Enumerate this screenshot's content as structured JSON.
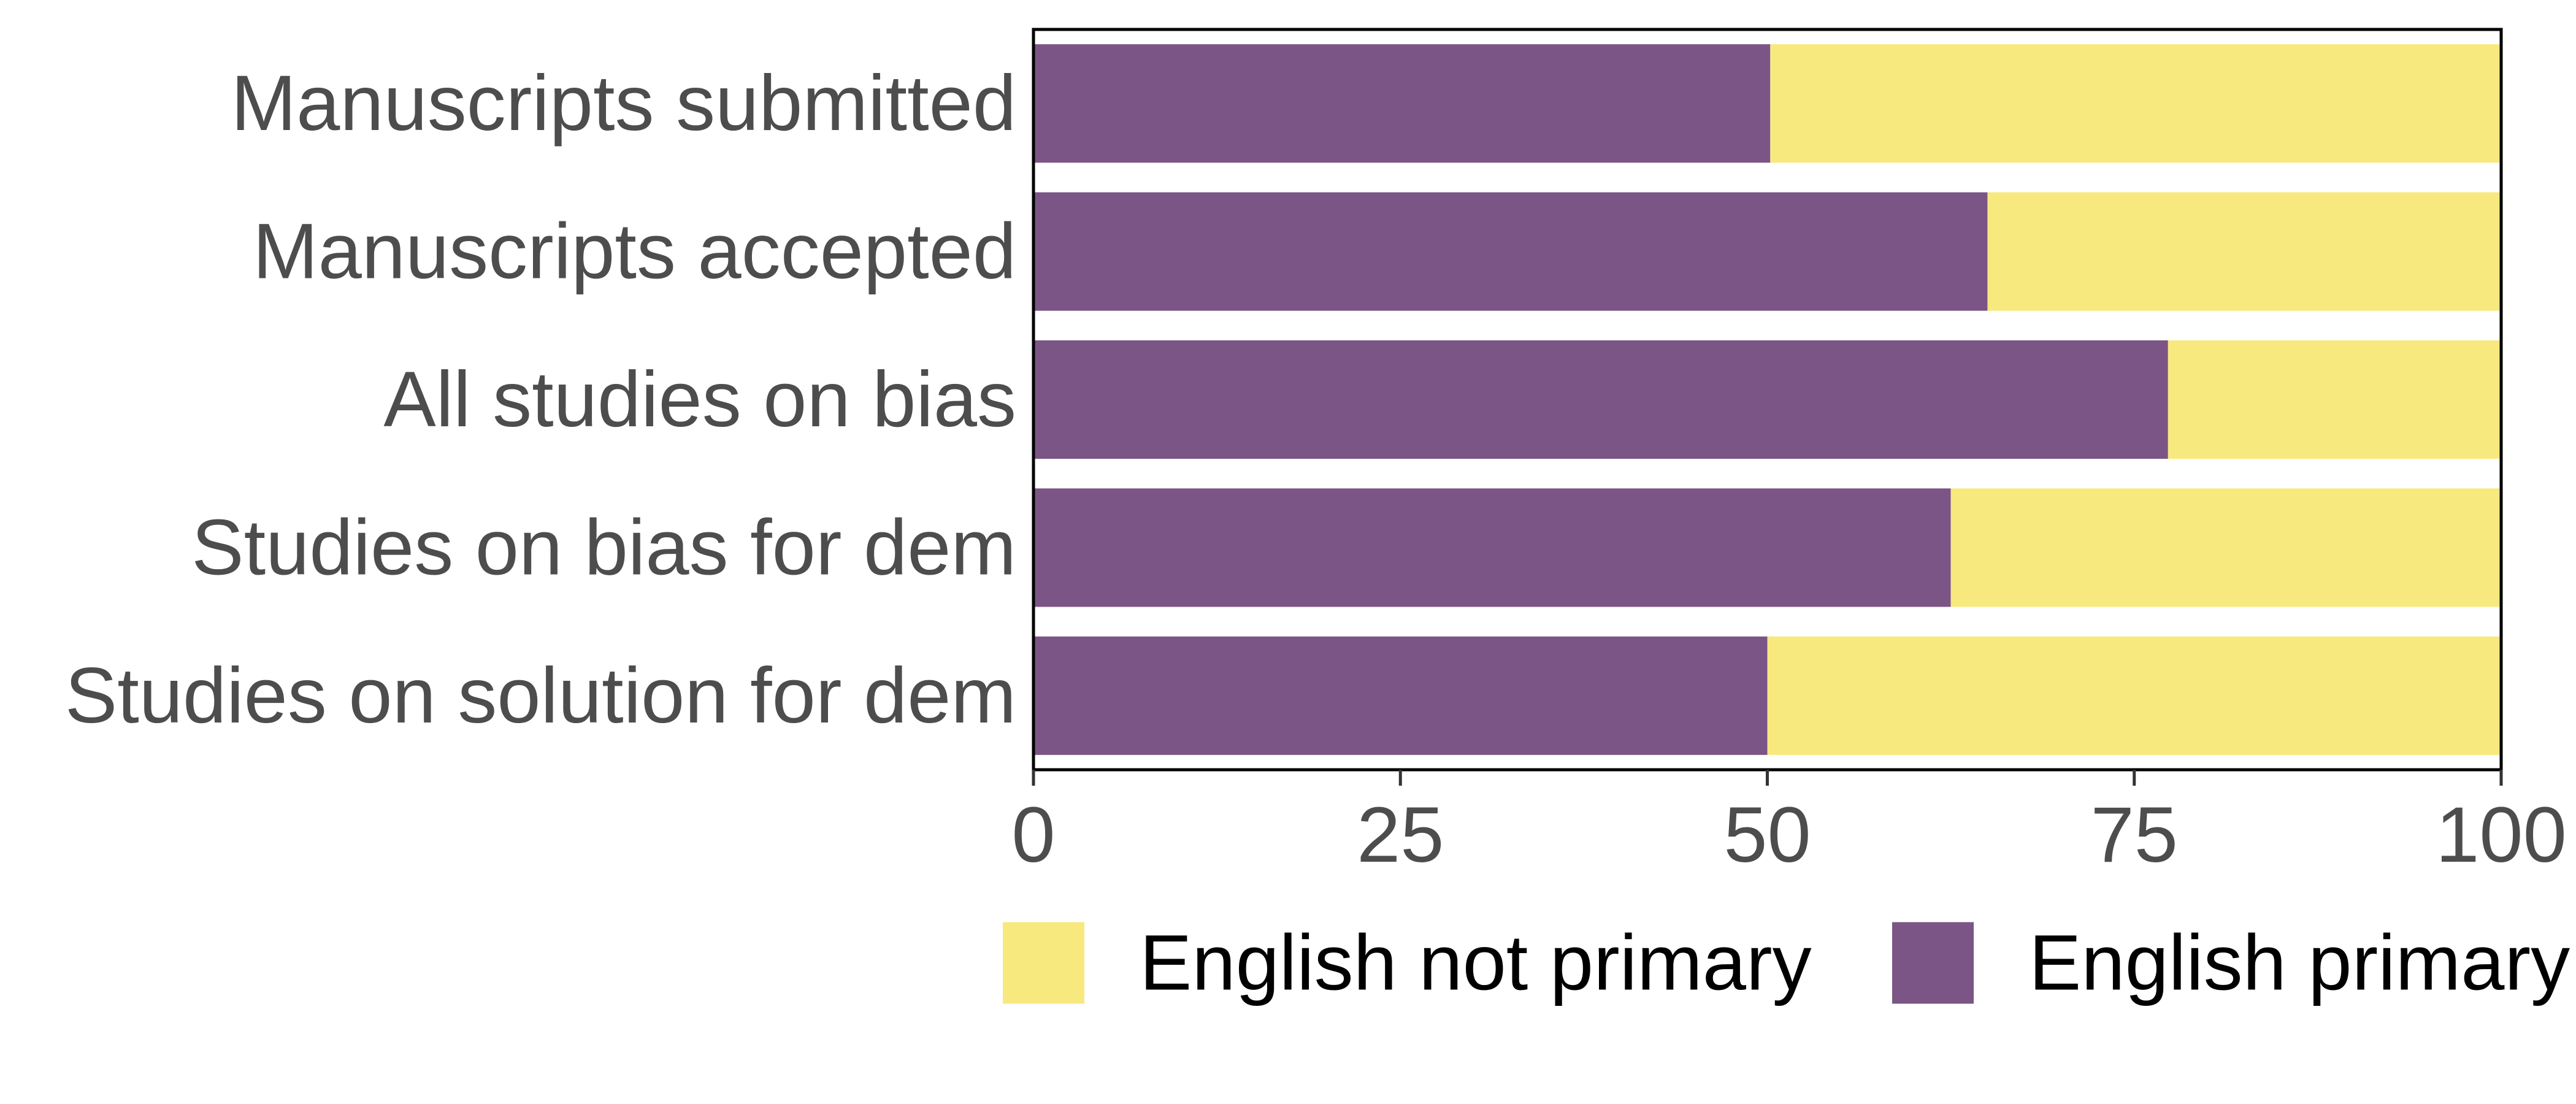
{
  "chart_data": {
    "type": "bar",
    "orientation": "horizontal",
    "stacked": true,
    "title": "",
    "xlabel": "",
    "ylabel": "",
    "categories": [
      "Manuscripts submitted",
      "Manuscripts accepted",
      "All studies on bias",
      "Studies on bias for dem",
      "Studies on solution for dem"
    ],
    "series": [
      {
        "name": "English primary",
        "color": "#7b5585",
        "values": [
          50.2,
          65.0,
          77.3,
          62.5,
          50.0
        ]
      },
      {
        "name": "English not primary",
        "color": "#f8e97e",
        "values": [
          49.8,
          35.0,
          22.7,
          37.5,
          50.0
        ]
      }
    ],
    "xlim": [
      0,
      100
    ],
    "xticks": [
      0,
      25,
      50,
      75,
      100
    ],
    "xtick_labels": [
      "0",
      "25",
      "50",
      "75",
      "100"
    ],
    "grid": false,
    "legend": {
      "position": "bottom",
      "entries": [
        "English not primary",
        "English primary"
      ]
    }
  }
}
